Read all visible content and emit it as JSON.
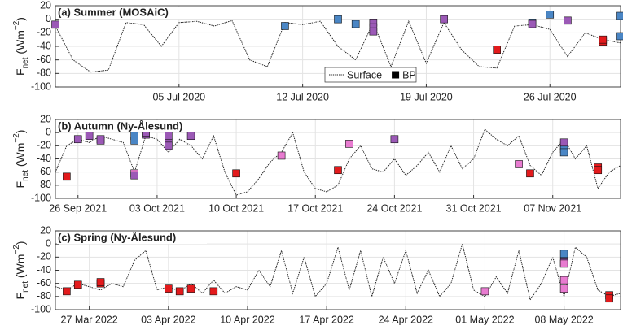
{
  "chart_data": [
    {
      "type": "line",
      "title": "(a) Summer (MOSAiC)",
      "y_label": [
        "F",
        "net",
        " (Wm",
        "−2",
        ")"
      ],
      "xlim": [
        "2020-06-28",
        "2020-07-30"
      ],
      "xticks": [
        {
          "value": "2020-07-05",
          "label": "05 Jul 2020"
        },
        {
          "value": "2020-07-12",
          "label": "12 Jul 2020"
        },
        {
          "value": "2020-07-19",
          "label": "19 Jul 2020"
        },
        {
          "value": "2020-07-26",
          "label": "26 Jul 2020"
        }
      ],
      "ylim": [
        -100,
        20
      ],
      "yticks": [
        -100,
        -80,
        -60,
        -40,
        -20,
        0,
        20
      ],
      "grid": true,
      "legend": "lower center",
      "series": [
        {
          "name": "Surface",
          "type": "line",
          "color": "#222222",
          "x": [
            "2020-06-28",
            "2020-06-29",
            "2020-06-30",
            "2020-07-01",
            "2020-07-02",
            "2020-07-03",
            "2020-07-04",
            "2020-07-05",
            "2020-07-06",
            "2020-07-07",
            "2020-07-08",
            "2020-07-09",
            "2020-07-10",
            "2020-07-11",
            "2020-07-12",
            "2020-07-13",
            "2020-07-14",
            "2020-07-15",
            "2020-07-16",
            "2020-07-17",
            "2020-07-18",
            "2020-07-19",
            "2020-07-20",
            "2020-07-21",
            "2020-07-22",
            "2020-07-23",
            "2020-07-24",
            "2020-07-25",
            "2020-07-26",
            "2020-07-27",
            "2020-07-28",
            "2020-07-29",
            "2020-07-30"
          ],
          "values": [
            -10,
            -60,
            -78,
            -75,
            -5,
            -8,
            -40,
            -5,
            -3,
            -10,
            -2,
            -60,
            -70,
            -5,
            -8,
            -3,
            -40,
            -60,
            -5,
            -70,
            -3,
            -65,
            -5,
            -45,
            -70,
            -72,
            -10,
            -8,
            -15,
            -55,
            -20,
            -30,
            -35
          ]
        },
        {
          "name": "BP",
          "type": "scatter",
          "marker": "square",
          "color": "#000000",
          "x": [
            "2020-06-28",
            "2020-07-11",
            "2020-07-14",
            "2020-07-15",
            "2020-07-16",
            "2020-07-16",
            "2020-07-16",
            "2020-07-20",
            "2020-07-23",
            "2020-07-25",
            "2020-07-25",
            "2020-07-26",
            "2020-07-27",
            "2020-07-29",
            "2020-07-29",
            "2020-07-30",
            "2020-07-30"
          ],
          "values": [
            -8,
            -10,
            0,
            -7,
            -5,
            -12,
            -18,
            0,
            -45,
            -5,
            -7,
            7,
            -2,
            -33,
            -30,
            -25,
            5
          ],
          "colors": [
            "#9b59b6",
            "#4a86c5",
            "#4a86c5",
            "#4a86c5",
            "#9b59b6",
            "#9b59b6",
            "#9b59b6",
            "#9b59b6",
            "#e31a1c",
            "#4a86c5",
            "#9b59b6",
            "#4a86c5",
            "#9b59b6",
            "#e31a1c",
            "#e31a1c",
            "#4a86c5",
            "#4a86c5"
          ]
        }
      ]
    },
    {
      "type": "line",
      "title": "(b) Autumn (Ny-Ålesund)",
      "y_label": [
        "F",
        "net",
        " (Wm",
        "−2",
        ")"
      ],
      "xlim": [
        "2021-09-24",
        "2021-11-13"
      ],
      "xticks": [
        {
          "value": "2021-09-26",
          "label": "26 Sep 2021"
        },
        {
          "value": "2021-10-03",
          "label": "03 Oct 2021"
        },
        {
          "value": "2021-10-10",
          "label": "10 Oct 2021"
        },
        {
          "value": "2021-10-17",
          "label": "17 Oct 2021"
        },
        {
          "value": "2021-10-24",
          "label": "24 Oct 2021"
        },
        {
          "value": "2021-10-31",
          "label": "31 Oct 2021"
        },
        {
          "value": "2021-11-07",
          "label": "07 Nov 2021"
        }
      ],
      "ylim": [
        -100,
        20
      ],
      "yticks": [
        -100,
        -80,
        -60,
        -40,
        -20,
        0,
        20
      ],
      "grid": true,
      "series": [
        {
          "type": "line",
          "color": "#222222",
          "x": [
            "2021-09-24",
            "2021-09-25",
            "2021-09-26",
            "2021-09-27",
            "2021-09-28",
            "2021-09-29",
            "2021-09-30",
            "2021-10-01",
            "2021-10-02",
            "2021-10-03",
            "2021-10-04",
            "2021-10-05",
            "2021-10-06",
            "2021-10-07",
            "2021-10-08",
            "2021-10-09",
            "2021-10-10",
            "2021-10-11",
            "2021-10-12",
            "2021-10-13",
            "2021-10-14",
            "2021-10-15",
            "2021-10-16",
            "2021-10-17",
            "2021-10-18",
            "2021-10-19",
            "2021-10-20",
            "2021-10-21",
            "2021-10-22",
            "2021-10-23",
            "2021-10-24",
            "2021-10-25",
            "2021-10-26",
            "2021-10-27",
            "2021-10-28",
            "2021-10-29",
            "2021-10-30",
            "2021-10-31",
            "2021-11-01",
            "2021-11-02",
            "2021-11-03",
            "2021-11-04",
            "2021-11-05",
            "2021-11-06",
            "2021-11-07",
            "2021-11-08",
            "2021-11-09",
            "2021-11-10",
            "2021-11-11",
            "2021-11-12",
            "2021-11-13"
          ],
          "values": [
            -60,
            -20,
            -10,
            -15,
            -5,
            -10,
            -15,
            -60,
            -5,
            -10,
            -30,
            -10,
            -20,
            -40,
            -5,
            -60,
            -95,
            -90,
            -70,
            -45,
            -30,
            0,
            -60,
            -85,
            -90,
            -80,
            -40,
            -20,
            -55,
            -60,
            -40,
            -65,
            -50,
            -30,
            -60,
            -20,
            -55,
            -40,
            5,
            -10,
            -20,
            -5,
            -50,
            -65,
            -30,
            -10,
            -40,
            -20,
            -85,
            -60,
            -50
          ]
        },
        {
          "type": "scatter",
          "marker": "square",
          "x": [
            "2021-09-25",
            "2021-09-26",
            "2021-09-27",
            "2021-09-28",
            "2021-09-28",
            "2021-10-01",
            "2021-10-01",
            "2021-10-01",
            "2021-10-01",
            "2021-10-02",
            "2021-10-02",
            "2021-10-04",
            "2021-10-04",
            "2021-10-04",
            "2021-10-06",
            "2021-10-10",
            "2021-10-14",
            "2021-10-19",
            "2021-10-20",
            "2021-10-24",
            "2021-11-04",
            "2021-11-05",
            "2021-11-08",
            "2021-11-08",
            "2021-11-08",
            "2021-11-08",
            "2021-11-11",
            "2021-11-11"
          ],
          "values": [
            -67,
            -10,
            -5,
            -10,
            -12,
            -5,
            -12,
            -62,
            -65,
            -3,
            0,
            -15,
            -5,
            -20,
            -5,
            -62,
            -35,
            -57,
            -17,
            -10,
            -48,
            -62,
            -20,
            -25,
            -30,
            -15,
            -53,
            -57
          ],
          "colors": [
            "#e31a1c",
            "#9b59b6",
            "#9b59b6",
            "#9b59b6",
            "#9b59b6",
            "#4a86c5",
            "#4a86c5",
            "#e87bd0",
            "#9b59b6",
            "#9b59b6",
            "#9b59b6",
            "#9b59b6",
            "#9b59b6",
            "#9b59b6",
            "#9b59b6",
            "#e31a1c",
            "#e87bd0",
            "#e31a1c",
            "#e87bd0",
            "#9b59b6",
            "#e87bd0",
            "#e31a1c",
            "#e87bd0",
            "#4a86c5",
            "#4a86c5",
            "#9b59b6",
            "#e31a1c",
            "#e31a1c"
          ]
        }
      ]
    },
    {
      "type": "line",
      "title": "(c) Spring (Ny-Ålesund)",
      "y_label": [
        "F",
        "net",
        " (Wm",
        "−2",
        ")"
      ],
      "xlim": [
        "2022-03-24",
        "2022-05-13"
      ],
      "xticks": [
        {
          "value": "2022-03-27",
          "label": "27 Mar 2022"
        },
        {
          "value": "2022-04-03",
          "label": "03 Apr 2022"
        },
        {
          "value": "2022-04-10",
          "label": "10 Apr 2022"
        },
        {
          "value": "2022-04-17",
          "label": "17 Apr 2022"
        },
        {
          "value": "2022-04-24",
          "label": "24 Apr 2022"
        },
        {
          "value": "2022-05-01",
          "label": "01 May 2022"
        },
        {
          "value": "2022-05-08",
          "label": "08 May 2022"
        }
      ],
      "ylim": [
        -100,
        20
      ],
      "yticks": [
        -100,
        -80,
        -60,
        -40,
        -20,
        0,
        20
      ],
      "grid": true,
      "series": [
        {
          "type": "line",
          "color": "#222222",
          "x": [
            "2022-03-24",
            "2022-03-25",
            "2022-03-26",
            "2022-03-27",
            "2022-03-28",
            "2022-03-29",
            "2022-03-30",
            "2022-03-31",
            "2022-04-01",
            "2022-04-02",
            "2022-04-03",
            "2022-04-04",
            "2022-04-05",
            "2022-04-06",
            "2022-04-07",
            "2022-04-08",
            "2022-04-09",
            "2022-04-10",
            "2022-04-11",
            "2022-04-12",
            "2022-04-13",
            "2022-04-14",
            "2022-04-15",
            "2022-04-16",
            "2022-04-17",
            "2022-04-18",
            "2022-04-19",
            "2022-04-20",
            "2022-04-21",
            "2022-04-22",
            "2022-04-23",
            "2022-04-24",
            "2022-04-25",
            "2022-04-26",
            "2022-04-27",
            "2022-04-28",
            "2022-04-29",
            "2022-04-30",
            "2022-05-01",
            "2022-05-02",
            "2022-05-03",
            "2022-05-04",
            "2022-05-05",
            "2022-05-06",
            "2022-05-07",
            "2022-05-08",
            "2022-05-09",
            "2022-05-10",
            "2022-05-11",
            "2022-05-12",
            "2022-05-13"
          ],
          "values": [
            -65,
            -70,
            -60,
            -65,
            -70,
            -60,
            -65,
            -25,
            -10,
            -70,
            -65,
            -72,
            -60,
            -75,
            -55,
            -75,
            -65,
            -70,
            -40,
            -65,
            -10,
            -75,
            -20,
            -80,
            -60,
            -5,
            -70,
            -10,
            -80,
            -20,
            -60,
            -10,
            -75,
            -40,
            -80,
            -60,
            0,
            -70,
            -80,
            -50,
            -75,
            -10,
            -85,
            -60,
            -20,
            -80,
            -5,
            -20,
            -70,
            -80,
            -75
          ]
        },
        {
          "type": "scatter",
          "marker": "square",
          "x": [
            "2022-03-25",
            "2022-03-26",
            "2022-03-28",
            "2022-03-28",
            "2022-04-03",
            "2022-04-04",
            "2022-04-05",
            "2022-04-07",
            "2022-05-01",
            "2022-05-08",
            "2022-05-08",
            "2022-05-08",
            "2022-05-08",
            "2022-05-08",
            "2022-05-12",
            "2022-05-12"
          ],
          "values": [
            -72,
            -62,
            -60,
            -58,
            -68,
            -72,
            -68,
            -72,
            -72,
            -15,
            -28,
            -30,
            -55,
            -68,
            -78,
            -83
          ],
          "colors": [
            "#e31a1c",
            "#e31a1c",
            "#e31a1c",
            "#e31a1c",
            "#e31a1c",
            "#e31a1c",
            "#e31a1c",
            "#e31a1c",
            "#e87bd0",
            "#4a86c5",
            "#9b59b6",
            "#e87bd0",
            "#e87bd0",
            "#e87bd0",
            "#e31a1c",
            "#e31a1c"
          ]
        }
      ]
    }
  ]
}
